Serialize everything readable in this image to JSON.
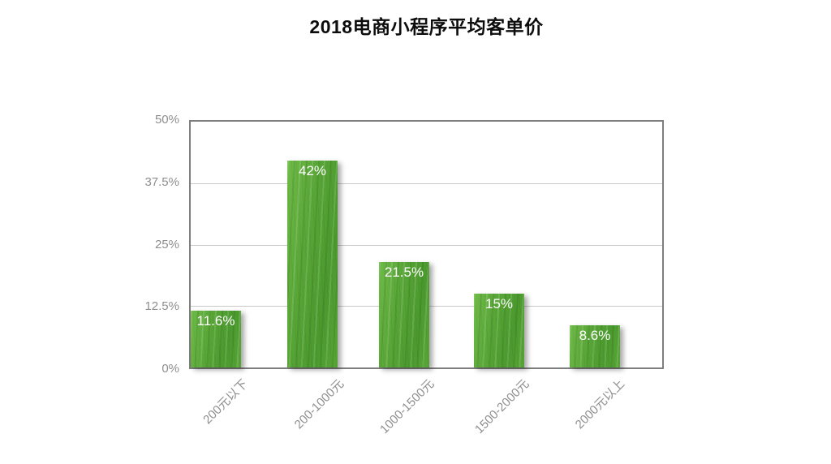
{
  "chart_data": {
    "type": "bar",
    "title": "2018电商小程序平均客单价",
    "categories": [
      "200元以下",
      "200-1000元",
      "1000-1500元",
      "1500-2000元",
      "2000元以上"
    ],
    "values": [
      11.6,
      42,
      21.5,
      15,
      8.6
    ],
    "value_labels": [
      "11.6%",
      "42%",
      "21.5%",
      "15%",
      "8.6%"
    ],
    "ytick_labels": [
      "50%",
      "37.5%",
      "25%",
      "12.5%",
      "0%"
    ],
    "ylim": [
      0,
      50
    ],
    "xlabel": "",
    "ylabel": "",
    "grid": true,
    "legend_position": "none",
    "colors": {
      "bar_light": "#6fbb48",
      "bar_base": "#58a637",
      "bar_dark": "#4b9a2e",
      "value_label": "#ffffff",
      "axis_text": "#8e8e8e",
      "gridline": "#c9c9c9",
      "plot_border": "#7e7e7e",
      "title": "#0d0d0d",
      "background": "#ffffff"
    }
  }
}
